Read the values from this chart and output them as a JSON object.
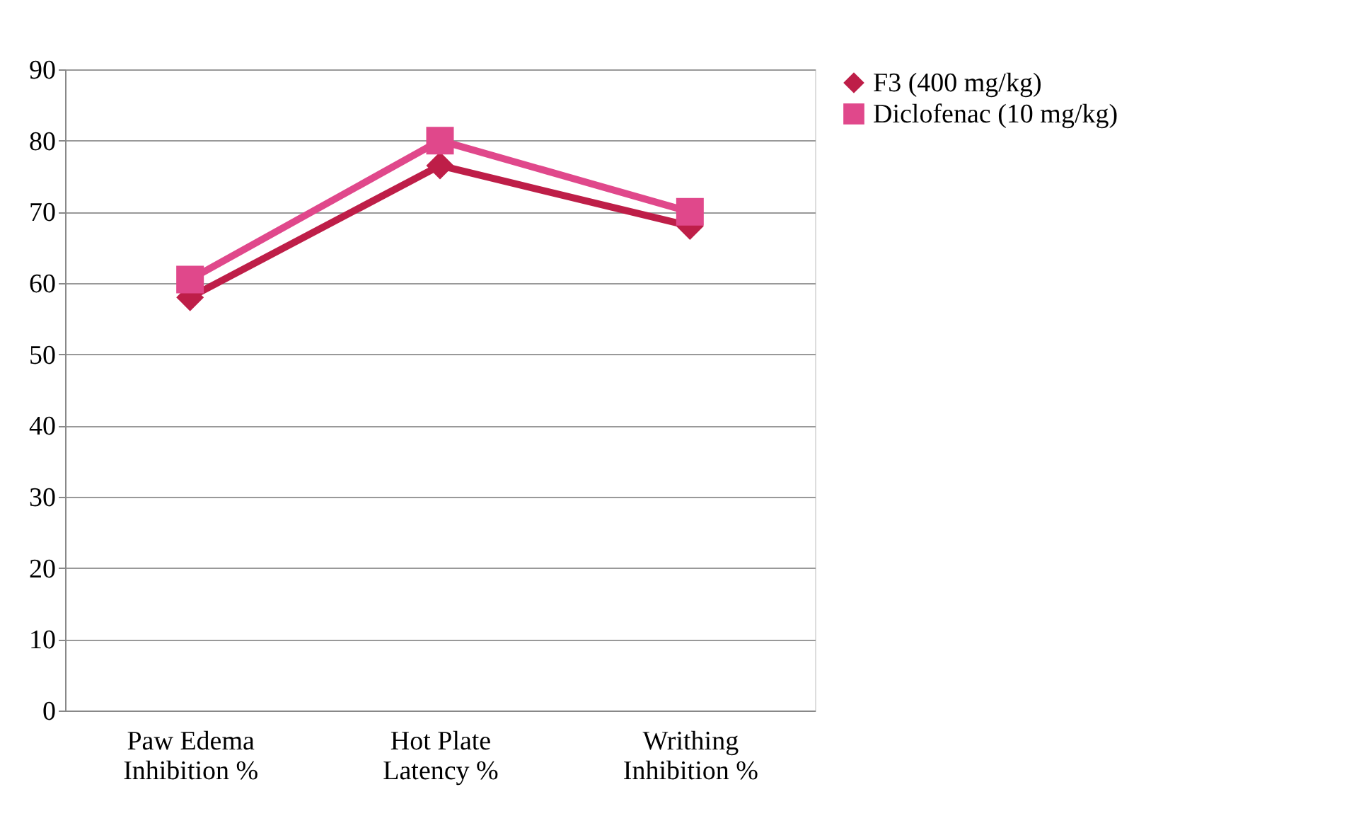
{
  "chart_data": {
    "type": "line",
    "categories": [
      "Paw Edema Inhibition %",
      "Hot Plate Latency %",
      "Writhing Inhibition %"
    ],
    "series": [
      {
        "name": "F3 (400 mg/kg)",
        "color": "#be1e48",
        "marker": "diamond",
        "values": [
          58,
          76.5,
          68
        ]
      },
      {
        "name": "Diclofenac (10 mg/kg)",
        "color": "#e0488b",
        "marker": "square",
        "values": [
          60.5,
          80,
          70
        ]
      }
    ],
    "ylim": [
      0,
      90
    ],
    "yticks": [
      0,
      10,
      20,
      30,
      40,
      50,
      60,
      70,
      80,
      90
    ],
    "grid": "y",
    "legend": "right",
    "line_style": "solid"
  }
}
